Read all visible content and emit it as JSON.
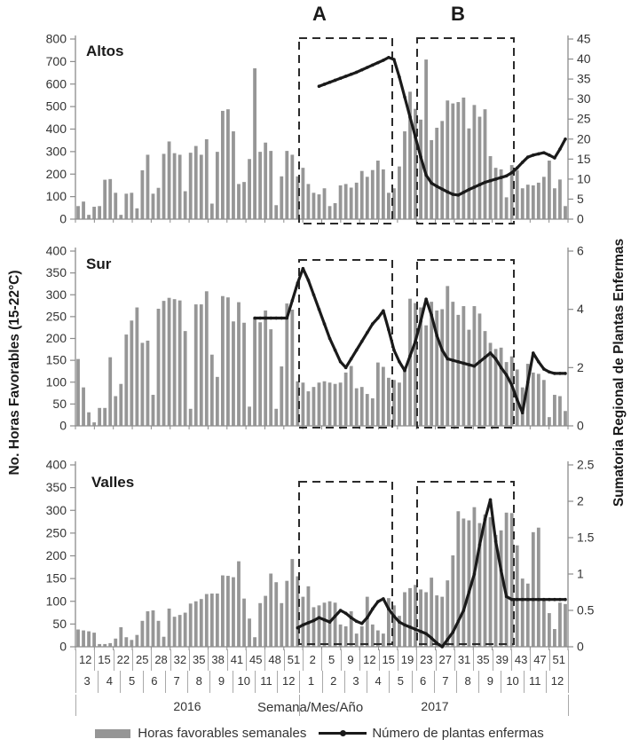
{
  "annotations": {
    "a": "A",
    "b": "B"
  },
  "left_axis_title": "No. Horas Favorables (15-22°C)",
  "right_axis_title": "Sumatoria Regional de Plantas Enfermas",
  "x_axis": {
    "caption": "Semana/Mes/Año",
    "week_labels": [
      "12",
      "15",
      "22",
      "25",
      "28",
      "32",
      "35",
      "38",
      "41",
      "45",
      "48",
      "51",
      "2",
      "5",
      "9",
      "12",
      "15",
      "19",
      "23",
      "27",
      "31",
      "35",
      "39",
      "43",
      "47",
      "51"
    ],
    "month_labels": [
      "3",
      "4",
      "5",
      "6",
      "7",
      "8",
      "9",
      "10",
      "11",
      "12",
      "1",
      "2",
      "3",
      "4",
      "5",
      "6",
      "7",
      "8",
      "9",
      "10",
      "11",
      "12"
    ],
    "years": [
      "2016",
      "2017"
    ]
  },
  "legend": {
    "bars": "Horas favorables semanales",
    "line": "Número de plantas enfermas"
  },
  "colors": {
    "bar": "#969696",
    "line": "#1a1a1a",
    "axis": "#8c8c8c",
    "text": "#333333",
    "box": "#2b2b2b"
  },
  "chart_data": [
    {
      "type": "bar",
      "title": "Altos",
      "bar_series": "Horas favorables semanales",
      "line_series": "Número de plantas enfermas",
      "left_axis": {
        "min": 0,
        "max": 800,
        "ticks": [
          0,
          100,
          200,
          300,
          400,
          500,
          600,
          700,
          800
        ]
      },
      "right_axis": {
        "min": 0,
        "max": 45,
        "ticks": [
          0,
          5,
          10,
          15,
          20,
          25,
          30,
          35,
          40,
          45
        ]
      },
      "bars": [
        58,
        78,
        19,
        55,
        58,
        175,
        178,
        117,
        19,
        113,
        117,
        48,
        217,
        286,
        113,
        139,
        290,
        345,
        293,
        286,
        124,
        295,
        325,
        286,
        355,
        69,
        299,
        481,
        488,
        390,
        156,
        165,
        267,
        670,
        299,
        340,
        303,
        62,
        190,
        303,
        286,
        190,
        228,
        156,
        117,
        110,
        137,
        58,
        71,
        150,
        156,
        140,
        162,
        214,
        188,
        218,
        260,
        221,
        117,
        137,
        234,
        390,
        566,
        490,
        442,
        709,
        351,
        406,
        436,
        527,
        514,
        520,
        540,
        403,
        507,
        455,
        488,
        280,
        228,
        221,
        97,
        240,
        218,
        137,
        153,
        150,
        162,
        188,
        260,
        137,
        176,
        58
      ],
      "line": {
        "start_index": 45,
        "values": [
          33.2,
          33.7,
          34.2,
          34.7,
          35.2,
          35.7,
          36.2,
          36.7,
          37.3,
          37.9,
          38.5,
          39.1,
          39.7,
          40.4,
          39.9,
          35.5,
          30.5,
          25.5,
          20.5,
          15.5,
          11.0,
          9.0,
          8.2,
          7.5,
          6.8,
          6.2,
          6.0,
          6.7,
          7.4,
          8.0,
          8.6,
          9.2,
          9.6,
          10.0,
          10.4,
          10.8,
          11.6,
          12.8,
          14.2,
          15.5,
          16.0,
          16.3,
          16.6,
          16.0,
          15.3,
          17.5,
          20.0
        ]
      }
    },
    {
      "type": "bar",
      "title": "Sur",
      "bar_series": "Horas favorables semanales",
      "line_series": "Número de plantas enfermas",
      "left_axis": {
        "min": 0,
        "max": 400,
        "ticks": [
          0,
          50,
          100,
          150,
          200,
          250,
          300,
          350,
          400
        ]
      },
      "right_axis": {
        "min": 0,
        "max": 6,
        "ticks": [
          0,
          2,
          4,
          6
        ]
      },
      "bars": [
        153,
        88,
        31,
        8,
        41,
        41,
        157,
        68,
        96,
        209,
        241,
        271,
        190,
        195,
        71,
        268,
        286,
        293,
        290,
        287,
        217,
        39,
        278,
        278,
        308,
        163,
        112,
        297,
        294,
        239,
        283,
        236,
        44,
        245,
        237,
        264,
        221,
        39,
        136,
        280,
        266,
        102,
        99,
        79,
        89,
        99,
        102,
        99,
        96,
        99,
        122,
        137,
        86,
        89,
        73,
        63,
        145,
        135,
        110,
        105,
        99,
        135,
        291,
        281,
        271,
        230,
        284,
        264,
        267,
        320,
        284,
        254,
        274,
        220,
        274,
        257,
        217,
        190,
        176,
        179,
        146,
        159,
        129,
        88,
        142,
        122,
        119,
        105,
        20,
        71,
        68,
        34
      ],
      "line": {
        "start_index": 33,
        "values": [
          3.7,
          3.7,
          3.7,
          3.7,
          3.7,
          3.7,
          3.7,
          4.3,
          4.9,
          5.4,
          5.0,
          4.5,
          4.0,
          3.5,
          3.0,
          2.6,
          2.2,
          2.0,
          2.3,
          2.6,
          2.9,
          3.2,
          3.5,
          3.7,
          3.95,
          3.3,
          2.6,
          2.2,
          1.9,
          2.4,
          2.9,
          3.6,
          4.35,
          3.8,
          3.1,
          2.6,
          2.3,
          2.25,
          2.2,
          2.15,
          2.1,
          2.05,
          2.2,
          2.35,
          2.5,
          2.3,
          2.0,
          1.75,
          1.4,
          0.9,
          0.45,
          1.5,
          2.5,
          2.2,
          1.95,
          1.85,
          1.8,
          1.8,
          1.8
        ]
      }
    },
    {
      "type": "bar",
      "title": "Valles",
      "bar_series": "Horas favorables semanales",
      "line_series": "Número de plantas enfermas",
      "left_axis": {
        "min": 0,
        "max": 400,
        "ticks": [
          0,
          50,
          100,
          150,
          200,
          250,
          300,
          350,
          400
        ]
      },
      "right_axis": {
        "min": 0,
        "max": 2.5,
        "ticks": [
          0,
          0.5,
          1,
          1.5,
          2,
          2.5
        ]
      },
      "bars": [
        38,
        36,
        34,
        31,
        6,
        6,
        8,
        18,
        43,
        21,
        15,
        26,
        57,
        78,
        80,
        57,
        22,
        84,
        66,
        70,
        75,
        95,
        100,
        105,
        116,
        117,
        117,
        157,
        156,
        153,
        188,
        106,
        62,
        21,
        96,
        112,
        161,
        142,
        96,
        145,
        193,
        155,
        110,
        133,
        87,
        91,
        97,
        100,
        97,
        49,
        45,
        78,
        29,
        45,
        110,
        49,
        36,
        29,
        107,
        91,
        68,
        120,
        129,
        136,
        126,
        120,
        152,
        113,
        110,
        146,
        201,
        298,
        282,
        278,
        307,
        272,
        291,
        285,
        246,
        256,
        295,
        294,
        223,
        150,
        139,
        252,
        262,
        104,
        74,
        39,
        97,
        94
      ],
      "line": {
        "start_index": 41,
        "values": [
          0.26,
          0.3,
          0.33,
          0.36,
          0.4,
          0.37,
          0.34,
          0.42,
          0.5,
          0.46,
          0.4,
          0.35,
          0.32,
          0.4,
          0.52,
          0.62,
          0.66,
          0.52,
          0.42,
          0.34,
          0.3,
          0.27,
          0.24,
          0.21,
          0.18,
          0.12,
          0.05,
          0.0,
          0.1,
          0.2,
          0.35,
          0.5,
          0.75,
          1.0,
          1.4,
          1.75,
          2.02,
          1.45,
          1.05,
          0.69,
          0.65,
          0.65,
          0.65,
          0.65,
          0.65,
          0.65,
          0.65,
          0.65,
          0.65,
          0.65,
          0.65
        ]
      }
    }
  ],
  "highlight_boxes": [
    {
      "label": "A"
    },
    {
      "label": "B"
    }
  ]
}
